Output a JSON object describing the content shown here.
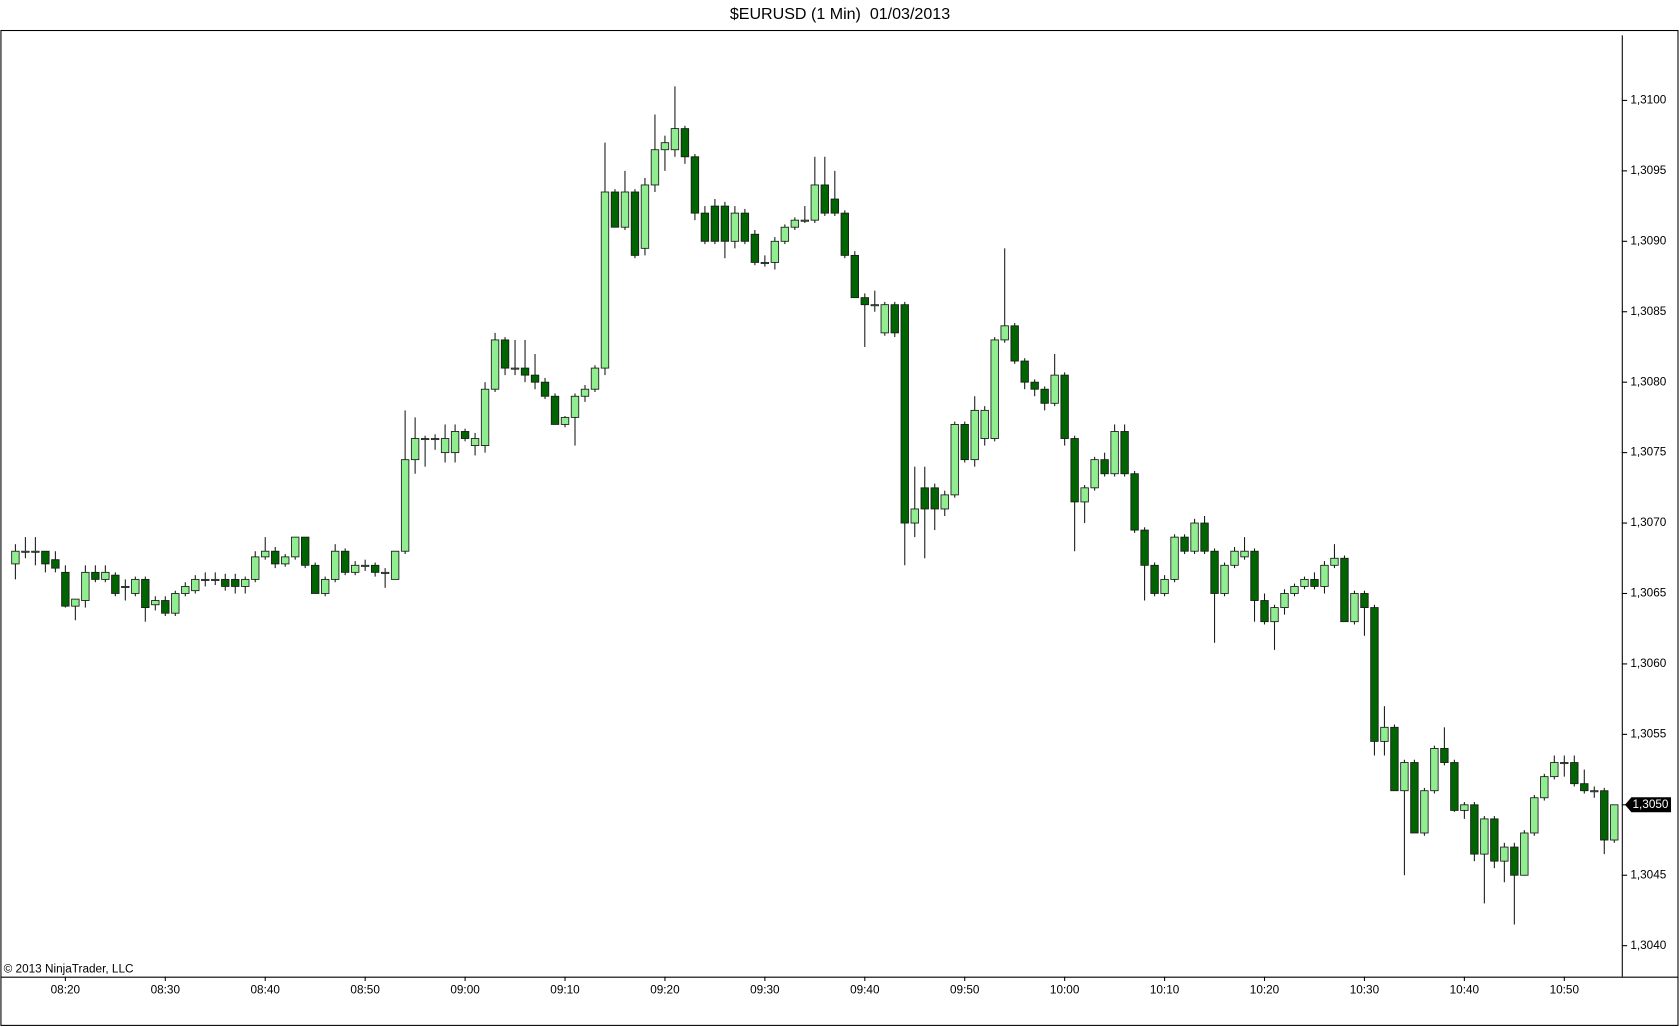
{
  "chart_data": {
    "type": "candlestick",
    "title": "$EURUSD (1 Min)  01/03/2013",
    "footer": "© 2013 NinjaTrader, LLC",
    "up_color": "#90ee90",
    "down_color": "#006400",
    "wick_color": "#1a1a1a",
    "ylim": [
      1.30378,
      1.3105
    ],
    "yticks": [
      {
        "value": 1.304,
        "label": "1,3040"
      },
      {
        "value": 1.3045,
        "label": "1,3045"
      },
      {
        "value": 1.305,
        "label": "1,3050"
      },
      {
        "value": 1.3055,
        "label": "1,3055"
      },
      {
        "value": 1.306,
        "label": "1,3060"
      },
      {
        "value": 1.3065,
        "label": "1,3065"
      },
      {
        "value": 1.307,
        "label": "1,3070"
      },
      {
        "value": 1.3075,
        "label": "1,3075"
      },
      {
        "value": 1.308,
        "label": "1,3080"
      },
      {
        "value": 1.3085,
        "label": "1,3085"
      },
      {
        "value": 1.309,
        "label": "1,3090"
      },
      {
        "value": 1.3095,
        "label": "1,3095"
      },
      {
        "value": 1.31,
        "label": "1,3100"
      }
    ],
    "last_price": {
      "value": 1.305,
      "label": "1,3050"
    },
    "categories": [
      null,
      null,
      null,
      null,
      null,
      "08:20",
      null,
      null,
      null,
      null,
      null,
      null,
      null,
      null,
      null,
      "08:30",
      null,
      null,
      null,
      null,
      null,
      null,
      null,
      null,
      null,
      "08:40",
      null,
      null,
      null,
      null,
      null,
      null,
      null,
      null,
      null,
      "08:50",
      null,
      null,
      null,
      null,
      null,
      null,
      null,
      null,
      null,
      "09:00",
      null,
      null,
      null,
      null,
      null,
      null,
      null,
      null,
      null,
      "09:10",
      null,
      null,
      null,
      null,
      null,
      null,
      null,
      null,
      null,
      "09:20",
      null,
      null,
      null,
      null,
      null,
      null,
      null,
      null,
      null,
      "09:30",
      null,
      null,
      null,
      null,
      null,
      null,
      null,
      null,
      null,
      "09:40",
      null,
      null,
      null,
      null,
      null,
      null,
      null,
      null,
      null,
      "09:50",
      null,
      null,
      null,
      null,
      null,
      null,
      null,
      null,
      null,
      "10:00",
      null,
      null,
      null,
      null,
      null,
      null,
      null,
      null,
      null,
      "10:10",
      null,
      null,
      null,
      null,
      null,
      null,
      null,
      null,
      null,
      "10:20",
      null,
      null,
      null,
      null,
      null,
      null,
      null,
      null,
      null,
      "10:30",
      null,
      null,
      null,
      null,
      null,
      null,
      null,
      null,
      null,
      "10:40",
      null,
      null,
      null,
      null,
      null,
      null,
      null,
      null,
      null,
      "10:50",
      null,
      null,
      null,
      null,
      null
    ],
    "open": [
      1.30671,
      1.3068,
      1.3068,
      1.3068,
      1.30674,
      1.30665,
      1.30641,
      1.30645,
      1.30665,
      1.3066,
      1.30663,
      1.30655,
      1.3065,
      1.3066,
      1.30642,
      1.30645,
      1.30636,
      1.3065,
      1.30652,
      1.3066,
      1.3066,
      1.3066,
      1.3066,
      1.30655,
      1.3066,
      1.30676,
      1.3068,
      1.30671,
      1.30676,
      1.3069,
      1.3067,
      1.3065,
      1.3066,
      1.3068,
      1.30665,
      1.3067,
      1.3067,
      1.30665,
      1.3066,
      1.3068,
      1.30745,
      1.3076,
      1.3076,
      1.3075,
      1.3075,
      1.30765,
      1.30755,
      1.30755,
      1.30795,
      1.3083,
      1.3081,
      1.3081,
      1.30805,
      1.308,
      1.3079,
      1.3077,
      1.30775,
      1.3079,
      1.30795,
      1.3081,
      1.30935,
      1.3091,
      1.30935,
      1.30895,
      1.3094,
      1.30965,
      1.30965,
      1.3098,
      1.3096,
      1.3092,
      1.30925,
      1.30925,
      1.309,
      1.3092,
      1.30905,
      1.30885,
      1.30885,
      1.309,
      1.3091,
      1.30915,
      1.30915,
      1.3094,
      1.3093,
      1.3092,
      1.3089,
      1.3086,
      1.30855,
      1.30835,
      1.30855,
      1.30855,
      1.307,
      1.30725,
      1.30725,
      1.3071,
      1.3072,
      1.3077,
      1.30745,
      1.3076,
      1.3076,
      1.3083,
      1.3084,
      1.30815,
      1.308,
      1.30795,
      1.30785,
      1.30805,
      1.3076,
      1.30715,
      1.30725,
      1.30745,
      1.30735,
      1.30765,
      1.30735,
      1.30695,
      1.3067,
      1.3065,
      1.3066,
      1.3069,
      1.3068,
      1.307,
      1.3068,
      1.3065,
      1.3067,
      1.30676,
      1.3068,
      1.30645,
      1.3063,
      1.3064,
      1.3065,
      1.30655,
      1.3066,
      1.30655,
      1.3067,
      1.30675,
      1.3063,
      1.3065,
      1.3064,
      1.30545,
      1.30555,
      1.3051,
      1.3053,
      1.3048,
      1.3051,
      1.3054,
      1.3053,
      1.30496,
      1.305,
      1.30465,
      1.3049,
      1.3046,
      1.3047,
      1.3045,
      1.3048,
      1.30505,
      1.3052,
      1.3053,
      1.3053,
      1.30515,
      1.3051,
      1.3051,
      1.30475
    ],
    "high": [
      1.30685,
      1.3069,
      1.3069,
      1.3068,
      1.3068,
      1.3067,
      1.30646,
      1.3067,
      1.3067,
      1.3067,
      1.30665,
      1.3066,
      1.30662,
      1.30662,
      1.30648,
      1.30648,
      1.30652,
      1.30658,
      1.30663,
      1.30665,
      1.30665,
      1.30664,
      1.30664,
      1.30662,
      1.3068,
      1.3069,
      1.30683,
      1.30678,
      1.3069,
      1.3069,
      1.30672,
      1.30662,
      1.30685,
      1.30682,
      1.30673,
      1.30674,
      1.30672,
      1.30668,
      1.3068,
      1.3078,
      1.30775,
      1.30762,
      1.30763,
      1.3077,
      1.3077,
      1.30767,
      1.30764,
      1.308,
      1.30835,
      1.30832,
      1.3083,
      1.3083,
      1.3082,
      1.30803,
      1.30792,
      1.30776,
      1.30792,
      1.30798,
      1.30812,
      1.3097,
      1.30937,
      1.3095,
      1.30937,
      1.30945,
      1.3099,
      1.30975,
      1.3101,
      1.30982,
      1.30962,
      1.30925,
      1.3093,
      1.30928,
      1.30925,
      1.30923,
      1.30908,
      1.3089,
      1.30903,
      1.30912,
      1.30917,
      1.30925,
      1.3096,
      1.3096,
      1.3095,
      1.30922,
      1.30893,
      1.30863,
      1.30865,
      1.30857,
      1.30857,
      1.30857,
      1.3074,
      1.3074,
      1.30728,
      1.30723,
      1.30772,
      1.30772,
      1.3079,
      1.30783,
      1.30832,
      1.30895,
      1.30842,
      1.30817,
      1.30802,
      1.30797,
      1.3082,
      1.30807,
      1.30762,
      1.30727,
      1.30747,
      1.3075,
      1.3077,
      1.3077,
      1.30737,
      1.30697,
      1.30672,
      1.30663,
      1.30692,
      1.30692,
      1.30703,
      1.30705,
      1.30682,
      1.30672,
      1.30683,
      1.3069,
      1.30682,
      1.3065,
      1.30642,
      1.30653,
      1.30657,
      1.30662,
      1.30665,
      1.30673,
      1.30685,
      1.30677,
      1.30652,
      1.30652,
      1.30642,
      1.3057,
      1.30557,
      1.30532,
      1.30532,
      1.30512,
      1.30542,
      1.30555,
      1.30532,
      1.30502,
      1.30502,
      1.30492,
      1.30492,
      1.30473,
      1.30473,
      1.30482,
      1.30507,
      1.30522,
      1.30535,
      1.30535,
      1.30535,
      1.30525,
      1.30513,
      1.30512,
      1.305
    ],
    "low": [
      1.3066,
      1.30675,
      1.3067,
      1.30665,
      1.30665,
      1.3064,
      1.30631,
      1.3064,
      1.30658,
      1.30658,
      1.30648,
      1.30645,
      1.30648,
      1.3063,
      1.30638,
      1.30634,
      1.30634,
      1.30648,
      1.3065,
      1.30655,
      1.30656,
      1.30652,
      1.3065,
      1.3065,
      1.30658,
      1.30674,
      1.30668,
      1.30669,
      1.30674,
      1.30668,
      1.3065,
      1.30648,
      1.30658,
      1.30663,
      1.30663,
      1.30666,
      1.30662,
      1.30654,
      1.3066,
      1.30678,
      1.30735,
      1.3074,
      1.30752,
      1.30743,
      1.30743,
      1.30758,
      1.30748,
      1.3075,
      1.30793,
      1.30805,
      1.30805,
      1.308,
      1.30795,
      1.30788,
      1.3077,
      1.30768,
      1.30755,
      1.30786,
      1.30793,
      1.30805,
      1.3091,
      1.30908,
      1.30888,
      1.3089,
      1.30935,
      1.3095,
      1.3096,
      1.30955,
      1.30915,
      1.30898,
      1.30898,
      1.30888,
      1.30895,
      1.30898,
      1.30883,
      1.30882,
      1.3088,
      1.30898,
      1.30908,
      1.30913,
      1.30913,
      1.30918,
      1.30918,
      1.30888,
      1.3086,
      1.30825,
      1.3085,
      1.30833,
      1.30832,
      1.3067,
      1.3069,
      1.30675,
      1.30695,
      1.30705,
      1.30718,
      1.30743,
      1.3074,
      1.30755,
      1.30758,
      1.30828,
      1.30813,
      1.30795,
      1.3079,
      1.3078,
      1.30783,
      1.30755,
      1.3068,
      1.307,
      1.30723,
      1.30733,
      1.30733,
      1.30733,
      1.30693,
      1.30645,
      1.30648,
      1.30648,
      1.30658,
      1.30678,
      1.30678,
      1.30678,
      1.30615,
      1.30648,
      1.30668,
      1.30674,
      1.3063,
      1.30628,
      1.3061,
      1.30635,
      1.30648,
      1.30653,
      1.30653,
      1.3065,
      1.30668,
      1.3063,
      1.30628,
      1.3062,
      1.30535,
      1.30535,
      1.3051,
      1.3045,
      1.3048,
      1.30478,
      1.30508,
      1.30528,
      1.30495,
      1.3049,
      1.3046,
      1.3043,
      1.30455,
      1.30445,
      1.30415,
      1.3045,
      1.30478,
      1.30503,
      1.30518,
      1.3052,
      1.30513,
      1.30508,
      1.30505,
      1.30465,
      1.30473
    ],
    "close": [
      1.3068,
      1.3068,
      1.3068,
      1.30671,
      1.30668,
      1.30641,
      1.30646,
      1.30665,
      1.3066,
      1.30665,
      1.3065,
      1.30655,
      1.3066,
      1.3064,
      1.30645,
      1.30636,
      1.3065,
      1.30655,
      1.3066,
      1.3066,
      1.3066,
      1.30655,
      1.30655,
      1.3066,
      1.30676,
      1.3068,
      1.30671,
      1.30676,
      1.3069,
      1.3067,
      1.3065,
      1.3066,
      1.3068,
      1.30665,
      1.3067,
      1.3067,
      1.30665,
      1.30665,
      1.3068,
      1.30745,
      1.3076,
      1.3076,
      1.3076,
      1.3076,
      1.30765,
      1.3076,
      1.3076,
      1.30795,
      1.3083,
      1.3081,
      1.3081,
      1.30805,
      1.308,
      1.3079,
      1.3077,
      1.30775,
      1.3079,
      1.30795,
      1.3081,
      1.30935,
      1.3091,
      1.30935,
      1.3089,
      1.3094,
      1.30965,
      1.3097,
      1.3098,
      1.3096,
      1.3092,
      1.309,
      1.309,
      1.309,
      1.3092,
      1.309,
      1.30885,
      1.30885,
      1.309,
      1.3091,
      1.30915,
      1.30915,
      1.3094,
      1.3092,
      1.3092,
      1.3089,
      1.3086,
      1.30855,
      1.30855,
      1.30855,
      1.30835,
      1.307,
      1.3071,
      1.3071,
      1.3071,
      1.3072,
      1.3077,
      1.30745,
      1.3078,
      1.3078,
      1.3083,
      1.3084,
      1.30815,
      1.308,
      1.30795,
      1.30785,
      1.30805,
      1.3076,
      1.30715,
      1.30725,
      1.30745,
      1.30735,
      1.30765,
      1.30735,
      1.30695,
      1.3067,
      1.3065,
      1.3066,
      1.3069,
      1.3068,
      1.307,
      1.3068,
      1.3065,
      1.3067,
      1.3068,
      1.3068,
      1.30645,
      1.3063,
      1.3064,
      1.3065,
      1.30655,
      1.3066,
      1.30655,
      1.3067,
      1.30675,
      1.3063,
      1.3065,
      1.3064,
      1.30545,
      1.30555,
      1.3051,
      1.3053,
      1.3048,
      1.3051,
      1.3054,
      1.3053,
      1.30496,
      1.305,
      1.30465,
      1.3049,
      1.3046,
      1.3047,
      1.3045,
      1.3048,
      1.30505,
      1.3052,
      1.3053,
      1.3053,
      1.30515,
      1.3051,
      1.3051,
      1.30475,
      1.305
    ]
  }
}
